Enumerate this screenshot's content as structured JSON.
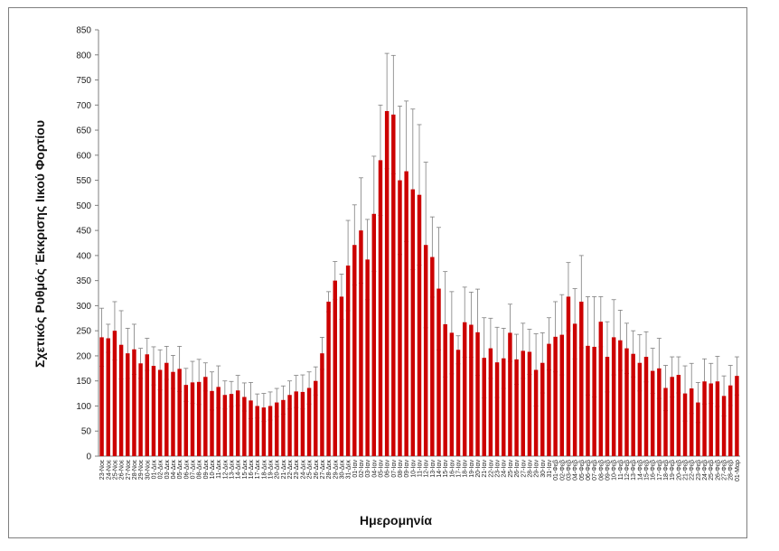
{
  "chart_data": {
    "type": "bar",
    "xlabel": "Ημερομηνία",
    "ylabel": "Σχετικός Ρυθμός Έκκρισης Ιικού Φορτίου",
    "ylim": [
      0,
      850
    ],
    "yticks": [
      0,
      50,
      100,
      150,
      200,
      250,
      300,
      350,
      400,
      450,
      500,
      550,
      600,
      650,
      700,
      750,
      800,
      850
    ],
    "grid": false,
    "bar_color": "#cc0000",
    "error_color": "#7f7f7f",
    "tick_labels": [
      "23-Νοε",
      "24-Νοε",
      "25-Νοε",
      "26-Νοε",
      "27-Νοε",
      "28-Νοε",
      "29-Νοε",
      "30-Νοε",
      "01-Δεκ",
      "02-Δεκ",
      "03-Δεκ",
      "04-Δεκ",
      "05-Δεκ",
      "06-Δεκ",
      "07-Δεκ",
      "08-Δεκ",
      "09-Δεκ",
      "10-Δεκ",
      "11-Δεκ",
      "12-Δεκ",
      "13-Δεκ",
      "14-Δεκ",
      "15-Δεκ",
      "16-Δεκ",
      "17-Δεκ",
      "18-Δεκ",
      "19-Δεκ",
      "20-Δεκ",
      "21-Δεκ",
      "22-Δεκ",
      "23-Δεκ",
      "24-Δεκ",
      "25-Δεκ",
      "26-Δεκ",
      "27-Δεκ",
      "28-Δεκ",
      "29-Δεκ",
      "30-Δεκ",
      "31-Δεκ",
      "01-Ιαν",
      "02-Ιαν",
      "03-Ιαν",
      "04-Ιαν",
      "05-Ιαν",
      "06-Ιαν",
      "07-Ιαν",
      "08-Ιαν",
      "09-Ιαν",
      "10-Ιαν",
      "11-Ιαν",
      "12-Ιαν",
      "13-Ιαν",
      "14-Ιαν",
      "15-Ιαν",
      "16-Ιαν",
      "17-Ιαν",
      "18-Ιαν",
      "19-Ιαν",
      "20-Ιαν",
      "21-Ιαν",
      "22-Ιαν",
      "23-Ιαν",
      "24-Ιαν",
      "25-Ιαν",
      "26-Ιαν",
      "27-Ιαν",
      "28-Ιαν",
      "29-Ιαν",
      "30-Ιαν",
      "31-Ιαν",
      "01-Φεβ",
      "02-Φεβ",
      "03-Φεβ",
      "04-Φεβ",
      "05-Φεβ",
      "06-Φεβ",
      "07-Φεβ",
      "08-Φεβ",
      "09-Φεβ",
      "10-Φεβ",
      "11-Φεβ",
      "12-Φεβ",
      "13-Φεβ",
      "14-Φεβ",
      "15-Φεβ",
      "16-Φεβ",
      "17-Φεβ",
      "18-Φεβ",
      "19-Φεβ",
      "20-Φεβ",
      "21-Φεβ",
      "22-Φεβ",
      "23-Φεβ",
      "24-Φεβ",
      "25-Φεβ",
      "26-Φεβ",
      "27-Φεβ",
      "28-Φεβ",
      "01-Μαρ"
    ],
    "values": [
      237,
      235,
      250,
      222,
      205,
      213,
      185,
      203,
      180,
      172,
      186,
      168,
      174,
      142,
      147,
      148,
      158,
      130,
      138,
      122,
      124,
      131,
      118,
      111,
      100,
      97,
      100,
      107,
      112,
      122,
      129,
      128,
      136,
      150,
      205,
      308,
      350,
      318,
      380,
      421,
      450,
      392,
      483,
      590,
      688,
      681,
      550,
      568,
      532,
      521,
      421,
      397,
      334,
      263,
      246,
      212,
      267,
      262,
      247,
      196,
      215,
      187,
      195,
      246,
      193,
      210,
      208,
      172,
      186,
      224,
      238,
      242,
      318,
      264,
      308,
      220,
      218,
      268,
      198,
      237,
      231,
      215,
      204,
      186,
      198,
      170,
      175,
      136,
      158,
      162,
      125,
      135,
      107,
      149,
      145,
      149,
      120,
      141,
      160
    ],
    "errors": [
      58,
      28,
      58,
      68,
      50,
      50,
      30,
      32,
      38,
      40,
      33,
      33,
      45,
      33,
      42,
      45,
      28,
      38,
      42,
      28,
      25,
      30,
      28,
      36,
      24,
      28,
      28,
      28,
      28,
      28,
      32,
      34,
      32,
      28,
      32,
      20,
      38,
      45,
      90,
      80,
      105,
      80,
      115,
      110,
      115,
      118,
      148,
      140,
      160,
      140,
      165,
      80,
      122,
      105,
      82,
      28,
      70,
      65,
      86,
      80,
      60,
      70,
      60,
      57,
      50,
      55,
      45,
      72,
      60,
      52,
      70,
      80,
      68,
      70,
      92,
      98,
      100,
      50,
      70,
      75,
      60,
      50,
      46,
      56,
      50,
      45,
      60,
      45,
      40,
      36,
      55,
      50,
      40,
      45,
      40,
      50,
      40,
      40,
      38
    ]
  }
}
